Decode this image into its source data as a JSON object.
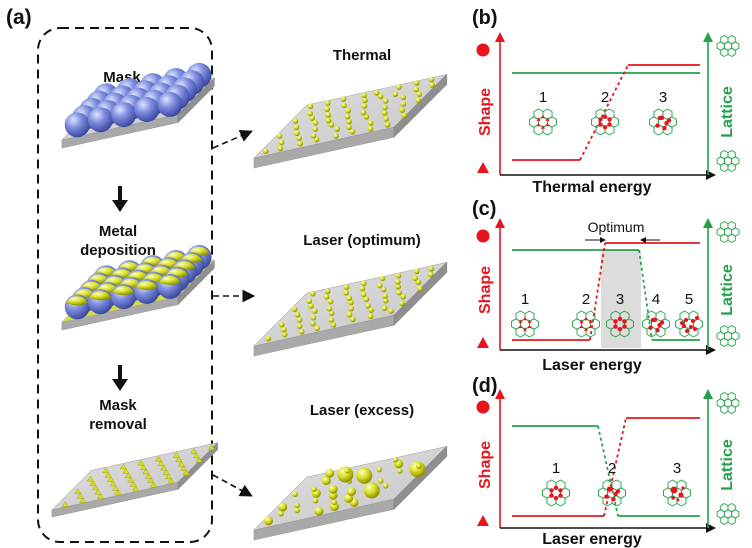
{
  "panel_a": {
    "label": "(a)",
    "steps": {
      "mask": "Mask",
      "deposition_line1": "Metal",
      "deposition_line2": "deposition",
      "removal_line1": "Mask",
      "removal_line2": "removal"
    },
    "results": {
      "thermal": "Thermal",
      "laser_optimum": "Laser (optimum)",
      "laser_excess": "Laser (excess)"
    }
  },
  "panel_b": {
    "label": "(b)",
    "y_left": "Shape",
    "y_right": "Lattice",
    "x_label": "Thermal energy",
    "states": [
      "1",
      "2",
      "3"
    ]
  },
  "panel_c": {
    "label": "(c)",
    "y_left": "Shape",
    "y_right": "Lattice",
    "x_label": "Laser energy",
    "optimum_label": "Optimum",
    "states": [
      "1",
      "2",
      "3",
      "4",
      "5"
    ]
  },
  "panel_d": {
    "label": "(d)",
    "y_left": "Shape",
    "y_right": "Lattice",
    "x_label": "Laser energy",
    "states": [
      "1",
      "2",
      "3"
    ]
  },
  "colors": {
    "shape": "#e8141c",
    "lattice": "#23a14a",
    "gold": "#d6dc1e",
    "mask_sphere": "#6a7bd8",
    "substrate": "#c9c9c9"
  }
}
